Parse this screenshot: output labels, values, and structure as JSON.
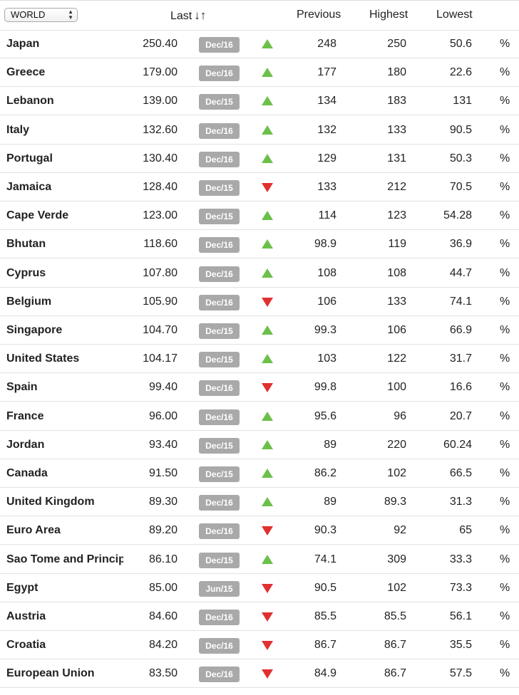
{
  "header": {
    "region_select": "WORLD",
    "col_last": "Last",
    "col_previous": "Previous",
    "col_highest": "Highest",
    "col_lowest": "Lowest"
  },
  "colors": {
    "up": "#6cc04a",
    "down": "#e03030",
    "date_badge": "#a9a9a9"
  },
  "rows": [
    {
      "name": "Japan",
      "last": "250.40",
      "date": "Dec/16",
      "trend": "up",
      "previous": "248",
      "highest": "250",
      "lowest": "50.6",
      "unit": "%"
    },
    {
      "name": "Greece",
      "last": "179.00",
      "date": "Dec/16",
      "trend": "up",
      "previous": "177",
      "highest": "180",
      "lowest": "22.6",
      "unit": "%"
    },
    {
      "name": "Lebanon",
      "last": "139.00",
      "date": "Dec/15",
      "trend": "up",
      "previous": "134",
      "highest": "183",
      "lowest": "131",
      "unit": "%"
    },
    {
      "name": "Italy",
      "last": "132.60",
      "date": "Dec/16",
      "trend": "up",
      "previous": "132",
      "highest": "133",
      "lowest": "90.5",
      "unit": "%"
    },
    {
      "name": "Portugal",
      "last": "130.40",
      "date": "Dec/16",
      "trend": "up",
      "previous": "129",
      "highest": "131",
      "lowest": "50.3",
      "unit": "%"
    },
    {
      "name": "Jamaica",
      "last": "128.40",
      "date": "Dec/15",
      "trend": "down",
      "previous": "133",
      "highest": "212",
      "lowest": "70.5",
      "unit": "%"
    },
    {
      "name": "Cape Verde",
      "last": "123.00",
      "date": "Dec/15",
      "trend": "up",
      "previous": "114",
      "highest": "123",
      "lowest": "54.28",
      "unit": "%"
    },
    {
      "name": "Bhutan",
      "last": "118.60",
      "date": "Dec/16",
      "trend": "up",
      "previous": "98.9",
      "highest": "119",
      "lowest": "36.9",
      "unit": "%"
    },
    {
      "name": "Cyprus",
      "last": "107.80",
      "date": "Dec/16",
      "trend": "up",
      "previous": "108",
      "highest": "108",
      "lowest": "44.7",
      "unit": "%"
    },
    {
      "name": "Belgium",
      "last": "105.90",
      "date": "Dec/16",
      "trend": "down",
      "previous": "106",
      "highest": "133",
      "lowest": "74.1",
      "unit": "%"
    },
    {
      "name": "Singapore",
      "last": "104.70",
      "date": "Dec/15",
      "trend": "up",
      "previous": "99.3",
      "highest": "106",
      "lowest": "66.9",
      "unit": "%"
    },
    {
      "name": "United States",
      "last": "104.17",
      "date": "Dec/15",
      "trend": "up",
      "previous": "103",
      "highest": "122",
      "lowest": "31.7",
      "unit": "%"
    },
    {
      "name": "Spain",
      "last": "99.40",
      "date": "Dec/16",
      "trend": "down",
      "previous": "99.8",
      "highest": "100",
      "lowest": "16.6",
      "unit": "%"
    },
    {
      "name": "France",
      "last": "96.00",
      "date": "Dec/16",
      "trend": "up",
      "previous": "95.6",
      "highest": "96",
      "lowest": "20.7",
      "unit": "%"
    },
    {
      "name": "Jordan",
      "last": "93.40",
      "date": "Dec/15",
      "trend": "up",
      "previous": "89",
      "highest": "220",
      "lowest": "60.24",
      "unit": "%"
    },
    {
      "name": "Canada",
      "last": "91.50",
      "date": "Dec/15",
      "trend": "up",
      "previous": "86.2",
      "highest": "102",
      "lowest": "66.5",
      "unit": "%"
    },
    {
      "name": "United Kingdom",
      "last": "89.30",
      "date": "Dec/16",
      "trend": "up",
      "previous": "89",
      "highest": "89.3",
      "lowest": "31.3",
      "unit": "%"
    },
    {
      "name": "Euro Area",
      "last": "89.20",
      "date": "Dec/16",
      "trend": "down",
      "previous": "90.3",
      "highest": "92",
      "lowest": "65",
      "unit": "%"
    },
    {
      "name": "Sao Tome and Principe",
      "last": "86.10",
      "date": "Dec/15",
      "trend": "up",
      "previous": "74.1",
      "highest": "309",
      "lowest": "33.3",
      "unit": "%"
    },
    {
      "name": "Egypt",
      "last": "85.00",
      "date": "Jun/15",
      "trend": "down",
      "previous": "90.5",
      "highest": "102",
      "lowest": "73.3",
      "unit": "%"
    },
    {
      "name": "Austria",
      "last": "84.60",
      "date": "Dec/16",
      "trend": "down",
      "previous": "85.5",
      "highest": "85.5",
      "lowest": "56.1",
      "unit": "%"
    },
    {
      "name": "Croatia",
      "last": "84.20",
      "date": "Dec/16",
      "trend": "down",
      "previous": "86.7",
      "highest": "86.7",
      "lowest": "35.5",
      "unit": "%"
    },
    {
      "name": "European Union",
      "last": "83.50",
      "date": "Dec/16",
      "trend": "down",
      "previous": "84.9",
      "highest": "86.7",
      "lowest": "57.5",
      "unit": "%"
    }
  ]
}
